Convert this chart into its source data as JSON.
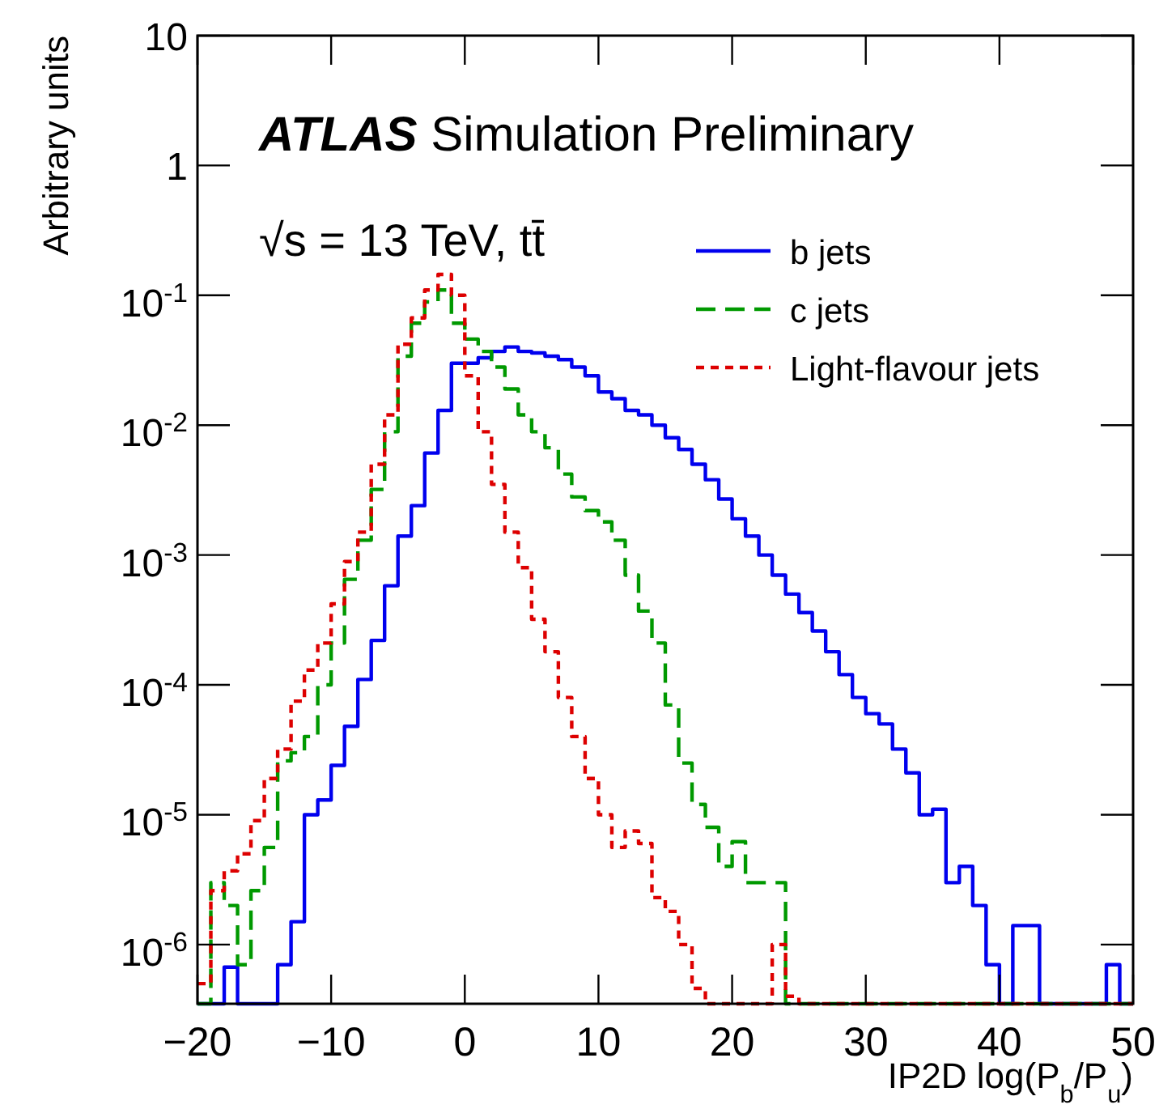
{
  "chart_data": {
    "type": "histogram",
    "title": "ATLAS Simulation Preliminary",
    "annotations": [
      "√s = 13 TeV, tt̄"
    ],
    "xlabel": "IP2D log(P$_{b}$/P$_{u}$)",
    "ylabel": "Arbitrary units",
    "log": "y",
    "legend": "top right",
    "grid": false,
    "bins": [
      -20,
      -19,
      -18,
      -17,
      -16,
      -15,
      -14,
      -13,
      -12,
      -11,
      -10,
      -9,
      -8,
      -7,
      -6,
      -5,
      -4,
      -3,
      -2,
      -1,
      0,
      1,
      2,
      3,
      4,
      5,
      6,
      7,
      8,
      9,
      10,
      11,
      12,
      13,
      14,
      15,
      16,
      17,
      18,
      19,
      20,
      21,
      22,
      23,
      24,
      25,
      26,
      27,
      28,
      29,
      30,
      31,
      32,
      33,
      34,
      35,
      36,
      37,
      38,
      39,
      40,
      41,
      42,
      43,
      44,
      45,
      46,
      47,
      48,
      49,
      50
    ],
    "series": [
      {
        "name": "b jets",
        "color": "#0000ee",
        "line_style": "solid",
        "values": [
          null,
          null,
          6.7e-07,
          null,
          null,
          null,
          7e-07,
          1.5e-06,
          1e-05,
          1.3e-05,
          2.4e-05,
          4.8e-05,
          0.00011,
          0.00022,
          0.00058,
          0.0014,
          0.0024,
          0.0061,
          0.013,
          0.03,
          0.03,
          0.033,
          0.037,
          0.04,
          0.037,
          0.036,
          0.034,
          0.032,
          0.028,
          0.024,
          0.018,
          0.016,
          0.013,
          0.012,
          0.01,
          0.008,
          0.0065,
          0.005,
          0.0038,
          0.0027,
          0.0019,
          0.0014,
          0.001,
          0.0007,
          0.0005,
          0.00036,
          0.00026,
          0.00018,
          0.00012,
          8e-05,
          6e-05,
          5e-05,
          3.2e-05,
          2.1e-05,
          1e-05,
          1.1e-05,
          3e-06,
          4e-06,
          2e-06,
          7e-07,
          null,
          1.4e-06,
          1.4e-06,
          null,
          null,
          null,
          null,
          null,
          7e-07,
          null
        ]
      },
      {
        "name": "c jets",
        "color": "#009900",
        "line_style": "dashed",
        "values": [
          null,
          3e-06,
          2e-06,
          7e-07,
          2.6e-06,
          5.6e-06,
          2.6e-05,
          3e-05,
          4e-05,
          0.0001,
          0.00021,
          0.00065,
          0.0013,
          0.0032,
          0.0089,
          0.034,
          0.061,
          0.089,
          0.11,
          0.061,
          0.046,
          0.037,
          0.028,
          0.019,
          0.012,
          0.0089,
          0.0067,
          0.0042,
          0.0028,
          0.0022,
          0.0018,
          0.0013,
          0.0007,
          0.00037,
          0.00021,
          7e-05,
          2.5e-05,
          1.2e-05,
          8e-06,
          4e-06,
          6.2e-06,
          3e-06,
          3e-06,
          3e-06,
          null,
          null,
          null,
          null,
          null,
          null,
          null,
          null,
          null,
          null,
          null,
          null,
          null,
          null,
          null,
          null,
          null,
          null,
          null,
          null,
          null,
          null,
          null,
          null,
          null,
          null
        ]
      },
      {
        "name": "Light-flavour jets",
        "color": "#dd0000",
        "line_style": "dotted",
        "values": [
          5e-07,
          2.6e-06,
          3.7e-06,
          5e-06,
          9e-06,
          1.9e-05,
          3.2e-05,
          7.5e-05,
          0.00013,
          0.00021,
          0.00042,
          0.00089,
          0.0015,
          0.005,
          0.012,
          0.042,
          0.067,
          0.11,
          0.145,
          0.1,
          0.024,
          0.0089,
          0.0035,
          0.0015,
          0.0008,
          0.00032,
          0.00018,
          8e-05,
          4e-05,
          1.9e-05,
          1e-05,
          5.6e-06,
          7.5e-06,
          6e-06,
          2.3e-06,
          1.8e-06,
          1e-06,
          4.6e-07,
          null,
          null,
          null,
          null,
          null,
          1e-06,
          4e-07,
          null,
          null,
          null,
          null,
          null,
          null,
          null,
          null,
          null,
          null,
          null,
          null,
          null,
          null,
          null,
          null,
          null,
          null,
          null,
          null,
          null,
          null,
          null,
          null,
          null
        ]
      }
    ],
    "xlim": [
      -20,
      50
    ],
    "xticks": [
      {
        "value": -20,
        "label": "−20"
      },
      {
        "value": -10,
        "label": "−10"
      },
      0,
      10,
      20,
      30,
      40,
      50
    ],
    "ylim": [
      3.5e-07,
      10
    ],
    "yticks": [
      {
        "value": 1e-06,
        "label": "10$^{-6}$"
      },
      {
        "value": 1e-05,
        "label": "10$^{-5}$"
      },
      {
        "value": 0.0001,
        "label": "10$^{-4}$"
      },
      {
        "value": 0.001,
        "label": "10$^{-3}$"
      },
      {
        "value": 0.01,
        "label": "10$^{-2}$"
      },
      {
        "value": 0.1,
        "label": "10$^{-1}$"
      },
      1,
      10
    ]
  }
}
